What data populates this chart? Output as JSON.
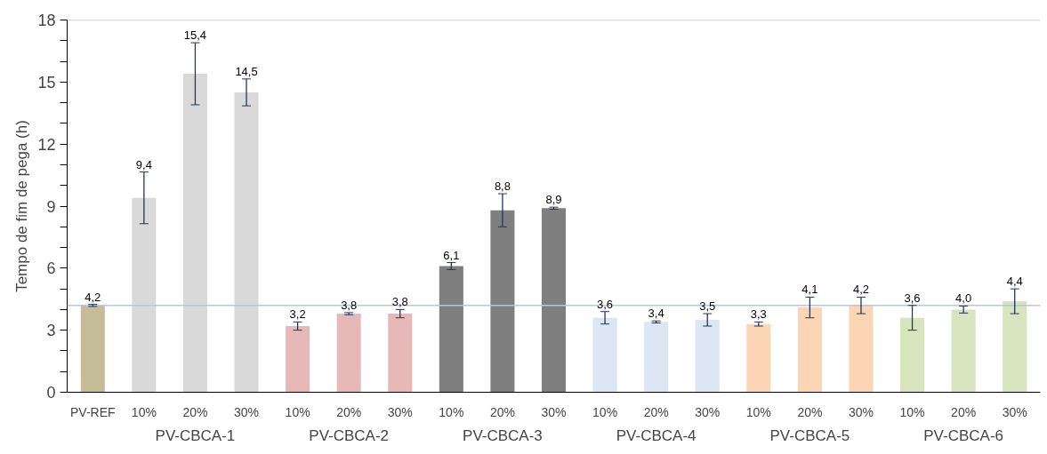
{
  "chart_data": {
    "type": "bar",
    "ylabel": "Tempo de fim de pega (h)",
    "categories": [
      "PV-REF",
      "10%",
      "20%",
      "30%",
      "10%",
      "20%",
      "30%",
      "10%",
      "20%",
      "30%",
      "10%",
      "20%",
      "30%",
      "10%",
      "20%",
      "30%",
      "10%",
      "20%",
      "30%"
    ],
    "values": [
      4.2,
      9.4,
      15.4,
      14.5,
      3.2,
      3.8,
      3.8,
      6.1,
      8.8,
      8.9,
      3.6,
      3.4,
      3.5,
      3.3,
      4.1,
      4.2,
      3.6,
      4.0,
      4.4
    ],
    "value_labels": [
      "4,2",
      "9,4",
      "15,4",
      "14,5",
      "3,2",
      "3,8",
      "3,8",
      "6,1",
      "8,8",
      "8,9",
      "3,6",
      "3,4",
      "3,5",
      "3,3",
      "4,1",
      "4,2",
      "3,6",
      "4,0",
      "4,4"
    ],
    "errors": [
      0.05,
      1.25,
      1.5,
      0.65,
      0.2,
      0.05,
      0.2,
      0.17,
      0.8,
      0.05,
      0.3,
      0.05,
      0.3,
      0.1,
      0.5,
      0.4,
      0.6,
      0.17,
      0.6
    ],
    "colors": [
      "#c4bd97",
      "#d9d9d9",
      "#d9d9d9",
      "#d9d9d9",
      "#e6b9b8",
      "#e6b9b8",
      "#e6b9b8",
      "#7f7f7f",
      "#7f7f7f",
      "#7f7f7f",
      "#dce6f2",
      "#dce6f2",
      "#dce6f2",
      "#fcd5b5",
      "#fcd5b5",
      "#fcd5b5",
      "#d7e4bd",
      "#d7e4bd",
      "#d7e4bd"
    ],
    "annotations": [
      "PV-CBCA-1",
      "PV-CBCA-2",
      "PV-CBCA-3",
      "PV-CBCA-4",
      "PV-CBCA-5",
      "PV-CBCA-6"
    ],
    "ylim": [
      0,
      18
    ],
    "yticks": [
      0,
      {
        "value": 1,
        "label": null
      },
      {
        "value": 2,
        "label": null
      },
      3,
      {
        "value": 4,
        "label": null
      },
      {
        "value": 5,
        "label": null
      },
      6,
      {
        "value": 7,
        "label": null
      },
      {
        "value": 8,
        "label": null
      },
      9,
      {
        "value": 10,
        "label": null
      },
      {
        "value": 11,
        "label": null
      },
      12,
      {
        "value": 13,
        "label": null
      },
      {
        "value": 14,
        "label": null
      },
      15,
      {
        "value": 16,
        "label": null
      },
      {
        "value": 17,
        "label": null
      },
      18
    ],
    "ref_lines": [
      {
        "axis": "y",
        "value": 4.2,
        "label": null,
        "color": "#b4c7e7"
      }
    ],
    "grid": false
  }
}
